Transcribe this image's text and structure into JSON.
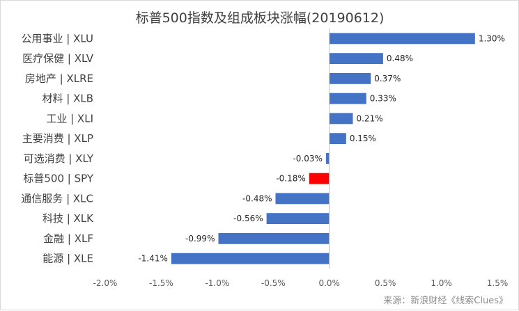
{
  "chart_data": {
    "type": "bar",
    "orientation": "horizontal",
    "title": "标普500指数及组成板块涨幅(20190612)",
    "categories": [
      "公用事业 | XLU",
      "医疗保健 | XLV",
      "房地产 | XLRE",
      "材料 | XLB",
      "工业 | XLI",
      "主要消费 | XLP",
      "可选消费 | XLY",
      "标普500 | SPY",
      "通信服务 | XLC",
      "科技 | XLK",
      "金融 | XLF",
      "能源 | XLE"
    ],
    "values": [
      1.3,
      0.48,
      0.37,
      0.33,
      0.21,
      0.15,
      -0.03,
      -0.18,
      -0.48,
      -0.56,
      -0.99,
      -1.41
    ],
    "value_labels": [
      "1.30%",
      "0.48%",
      "0.37%",
      "0.33%",
      "0.21%",
      "0.15%",
      "-0.03%",
      "-0.18%",
      "-0.48%",
      "-0.56%",
      "-0.99%",
      "-1.41%"
    ],
    "highlight_index": 7,
    "colors": {
      "default": "#4472C4",
      "highlight": "#FF0000"
    },
    "xlim": [
      -2.0,
      1.5
    ],
    "xticks": [
      -2.0,
      -1.5,
      -1.0,
      -0.5,
      0.0,
      0.5,
      1.0,
      1.5
    ],
    "xtick_labels": [
      "-2.0%",
      "-1.5%",
      "-1.0%",
      "-0.5%",
      "0.0%",
      "0.5%",
      "1.0%",
      "1.5%"
    ],
    "xlabel": "",
    "ylabel": "",
    "grid": false,
    "legend": "none"
  },
  "source": "来源：新浪财经《线索Clues》"
}
